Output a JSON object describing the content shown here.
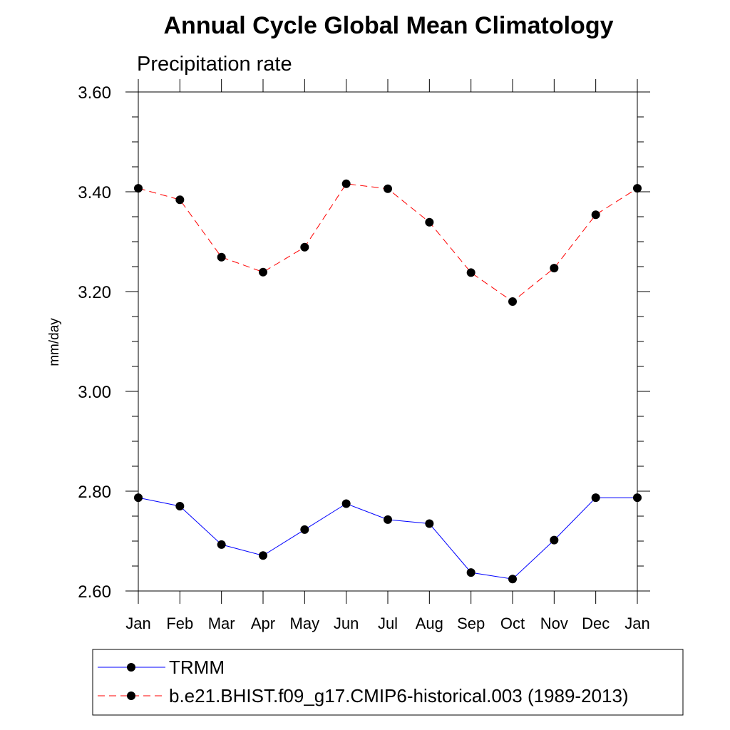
{
  "chart_data": {
    "type": "line",
    "title": "Annual Cycle Global Mean Climatology",
    "subtitle": "Precipitation rate",
    "xlabel": "",
    "ylabel": "mm/day",
    "categories": [
      "Jan",
      "Feb",
      "Mar",
      "Apr",
      "May",
      "Jun",
      "Jul",
      "Aug",
      "Sep",
      "Oct",
      "Nov",
      "Dec",
      "Jan"
    ],
    "ylim": [
      2.6,
      3.6
    ],
    "yticks": [
      2.6,
      2.8,
      3.0,
      3.2,
      3.4,
      3.6
    ],
    "ytick_labels": [
      "2.60",
      "2.80",
      "3.00",
      "3.20",
      "3.40",
      "3.60"
    ],
    "grid": false,
    "legend_position": "bottom",
    "series": [
      {
        "name": "TRMM",
        "color": "#0000ff",
        "line_style": "solid",
        "marker": "filled-circle",
        "values": [
          2.787,
          2.77,
          2.693,
          2.671,
          2.723,
          2.775,
          2.743,
          2.735,
          2.637,
          2.624,
          2.702,
          2.787,
          2.787
        ]
      },
      {
        "name": "b.e21.BHIST.f09_g17.CMIP6-historical.003 (1989-2013)",
        "color": "#ff0000",
        "line_style": "dashed",
        "marker": "filled-circle",
        "values": [
          3.407,
          3.384,
          3.269,
          3.239,
          3.289,
          3.416,
          3.406,
          3.339,
          3.238,
          3.18,
          3.247,
          3.354,
          3.407
        ]
      }
    ]
  }
}
